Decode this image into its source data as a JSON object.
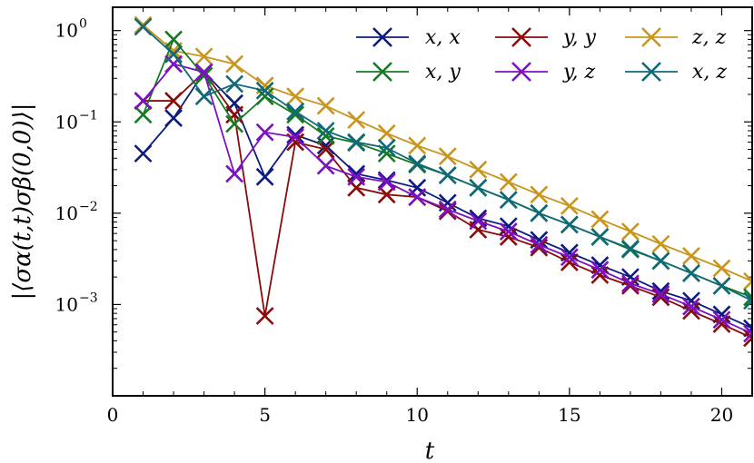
{
  "chart_data": {
    "type": "line",
    "title": "",
    "xlabel": "t",
    "ylabel": "|⟨σα(t,t)σβ(0,0)⟩|",
    "xlim": [
      0,
      21
    ],
    "ylim": [
      0.0001,
      1.8
    ],
    "yscale": "log",
    "xticks": [
      0,
      5,
      10,
      15,
      20
    ],
    "xtick_labels": [
      "0",
      "5",
      "10",
      "15",
      "20"
    ],
    "yticks": [
      0.001,
      0.01,
      0.1,
      1
    ],
    "ytick_labels": [
      {
        "base": "10",
        "exp": "−3"
      },
      {
        "base": "10",
        "exp": "−2"
      },
      {
        "base": "10",
        "exp": "−1"
      },
      {
        "base": "10",
        "exp": "0"
      }
    ],
    "legend_position": "top-right",
    "marker": "x",
    "x": [
      1,
      2,
      3,
      4,
      5,
      6,
      7,
      8,
      9,
      10,
      11,
      12,
      13,
      14,
      15,
      16,
      17,
      18,
      19,
      20,
      21
    ],
    "series": [
      {
        "name": "x, x",
        "color": "#0c1b7e",
        "values": [
          0.045,
          0.11,
          0.35,
          0.16,
          0.025,
          0.072,
          0.055,
          0.027,
          0.023,
          0.019,
          0.013,
          0.0088,
          0.0072,
          0.0051,
          0.0037,
          0.0027,
          0.002,
          0.0014,
          0.0011,
          0.00078,
          0.00055
        ]
      },
      {
        "name": "y, y",
        "color": "#8b0a0a",
        "values": [
          0.17,
          0.17,
          0.35,
          0.12,
          0.00075,
          0.06,
          0.05,
          0.019,
          0.016,
          0.015,
          0.0105,
          0.0066,
          0.0055,
          0.0042,
          0.0029,
          0.0021,
          0.0016,
          0.0012,
          0.00085,
          0.00061,
          0.00043
        ]
      },
      {
        "name": "z, z",
        "color": "#c8961e",
        "values": [
          1.15,
          0.6,
          0.52,
          0.43,
          0.25,
          0.19,
          0.15,
          0.105,
          0.075,
          0.055,
          0.042,
          0.03,
          0.022,
          0.016,
          0.012,
          0.0086,
          0.0063,
          0.0046,
          0.0034,
          0.0025,
          0.0018
        ]
      },
      {
        "name": "x, y",
        "color": "#177a22",
        "values": [
          0.12,
          0.8,
          0.32,
          0.095,
          0.19,
          0.12,
          0.07,
          0.059,
          0.045,
          0.034,
          0.026,
          0.019,
          0.014,
          0.01,
          0.0075,
          0.0055,
          0.004,
          0.003,
          0.0022,
          0.0016,
          0.0012
        ]
      },
      {
        "name": "y, z",
        "color": "#7d10c0",
        "values": [
          0.17,
          0.43,
          0.35,
          0.027,
          0.077,
          0.068,
          0.033,
          0.025,
          0.022,
          0.015,
          0.011,
          0.0082,
          0.0063,
          0.0045,
          0.0033,
          0.0024,
          0.0017,
          0.0013,
          0.00095,
          0.00068,
          0.00048
        ]
      },
      {
        "name": "x, z",
        "color": "#0f6a78",
        "values": [
          1.1,
          0.55,
          0.19,
          0.26,
          0.22,
          0.13,
          0.08,
          0.06,
          0.052,
          0.035,
          0.026,
          0.019,
          0.014,
          0.01,
          0.0075,
          0.0055,
          0.0041,
          0.003,
          0.0022,
          0.0016,
          0.0011
        ]
      }
    ]
  }
}
